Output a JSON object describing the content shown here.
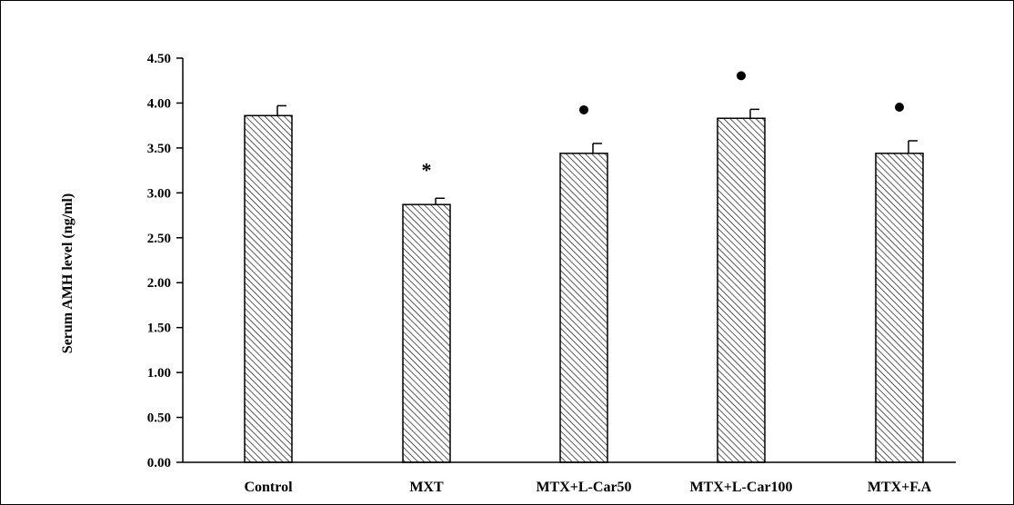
{
  "chart_data": {
    "type": "bar",
    "ylabel": "Serum AMH level (ng/ml)",
    "ylim": [
      0,
      4.5
    ],
    "yticks": [
      "0.00",
      "0.50",
      "1.00",
      "1.50",
      "2.00",
      "2.50",
      "3.00",
      "3.50",
      "4.00",
      "4.50"
    ],
    "categories": [
      "Control",
      "MXT",
      "MTX+L-Car50",
      "MTX+L-Car100",
      "MTX+F.A"
    ],
    "values": [
      3.86,
      2.87,
      3.44,
      3.83,
      3.44
    ],
    "errors": [
      0.11,
      0.07,
      0.11,
      0.1,
      0.14
    ],
    "significance": [
      "",
      "*",
      "•",
      "•",
      "•"
    ],
    "bar_fill": "hatched",
    "grid": false,
    "colors": {
      "bar_stroke": "#000000",
      "hatch": "#000000",
      "background": "#ffffff"
    }
  }
}
